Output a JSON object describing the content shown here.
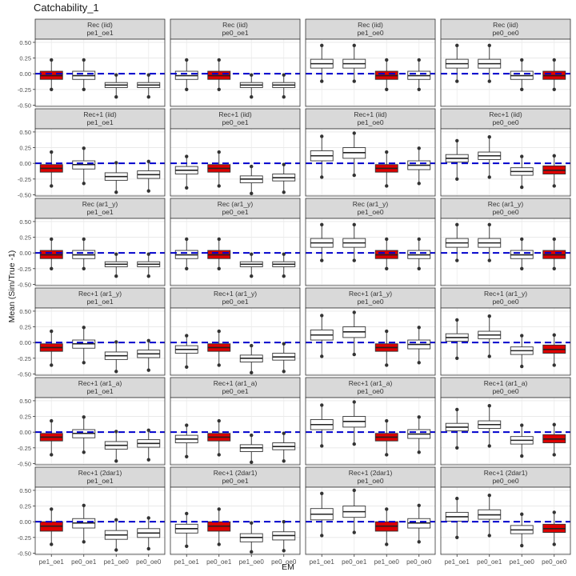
{
  "chart_data": {
    "type": "boxplot",
    "title": "Catchability_1",
    "xlabel": "EM",
    "ylabel": "Mean (Sim/True -1)",
    "ylim": [
      -0.52,
      0.55
    ],
    "yticks": [
      -0.5,
      -0.25,
      0,
      0.25,
      0.5
    ],
    "ytick_labels": [
      "-0.50",
      "-0.25",
      "0.00",
      "0.25",
      "0.50"
    ],
    "categories": [
      "pe1_oe1",
      "pe0_oe1",
      "pe1_oe0",
      "pe0_oe0"
    ],
    "reference_line": 0,
    "colors": {
      "highlight": "#dd0000",
      "plain": "#ffffff",
      "refline": "#0000cc",
      "strip": "#d9d9d9",
      "panel_border": "#333333"
    },
    "panels": [
      {
        "label": [
          "Rec (iid)",
          "pe1_oe1"
        ],
        "highlight": 0,
        "boxes": [
          [
            -0.25,
            -0.09,
            -0.03,
            0.04,
            0.22
          ],
          [
            -0.25,
            -0.09,
            -0.03,
            0.04,
            0.22
          ],
          [
            -0.37,
            -0.22,
            -0.18,
            -0.14,
            -0.02
          ],
          [
            -0.37,
            -0.22,
            -0.18,
            -0.14,
            -0.02
          ]
        ]
      },
      {
        "label": [
          "Rec (iid)",
          "pe0_oe1"
        ],
        "highlight": 1,
        "boxes": [
          [
            -0.25,
            -0.09,
            -0.03,
            0.04,
            0.22
          ],
          [
            -0.25,
            -0.09,
            -0.03,
            0.04,
            0.22
          ],
          [
            -0.37,
            -0.22,
            -0.18,
            -0.14,
            -0.02
          ],
          [
            -0.37,
            -0.22,
            -0.18,
            -0.14,
            -0.02
          ]
        ]
      },
      {
        "label": [
          "Rec (iid)",
          "pe1_oe0"
        ],
        "highlight": 2,
        "boxes": [
          [
            -0.12,
            0.09,
            0.16,
            0.23,
            0.45
          ],
          [
            -0.12,
            0.09,
            0.16,
            0.23,
            0.45
          ],
          [
            -0.25,
            -0.09,
            -0.03,
            0.04,
            0.22
          ],
          [
            -0.25,
            -0.09,
            -0.03,
            0.04,
            0.22
          ]
        ]
      },
      {
        "label": [
          "Rec (iid)",
          "pe0_oe0"
        ],
        "highlight": 3,
        "boxes": [
          [
            -0.12,
            0.09,
            0.16,
            0.23,
            0.45
          ],
          [
            -0.12,
            0.09,
            0.16,
            0.23,
            0.45
          ],
          [
            -0.25,
            -0.09,
            -0.03,
            0.04,
            0.22
          ],
          [
            -0.25,
            -0.09,
            -0.03,
            0.04,
            0.22
          ]
        ]
      },
      {
        "label": [
          "Rec+1 (iid)",
          "pe1_oe1"
        ],
        "highlight": 0,
        "boxes": [
          [
            -0.36,
            -0.14,
            -0.08,
            -0.02,
            0.18
          ],
          [
            -0.32,
            -0.09,
            -0.02,
            0.04,
            0.24
          ],
          [
            -0.46,
            -0.27,
            -0.21,
            -0.15,
            0.01
          ],
          [
            -0.44,
            -0.24,
            -0.18,
            -0.12,
            0.03
          ]
        ]
      },
      {
        "label": [
          "Rec+1 (iid)",
          "pe0_oe1"
        ],
        "highlight": 1,
        "boxes": [
          [
            -0.39,
            -0.17,
            -0.11,
            -0.05,
            0.11
          ],
          [
            -0.36,
            -0.14,
            -0.08,
            -0.02,
            0.18
          ],
          [
            -0.48,
            -0.31,
            -0.25,
            -0.2,
            -0.05
          ],
          [
            -0.46,
            -0.28,
            -0.23,
            -0.17,
            -0.02
          ]
        ]
      },
      {
        "label": [
          "Rec+1 (iid)",
          "pe1_oe0"
        ],
        "highlight": 2,
        "boxes": [
          [
            -0.22,
            0.04,
            0.12,
            0.2,
            0.43
          ],
          [
            -0.19,
            0.08,
            0.17,
            0.25,
            0.48
          ],
          [
            -0.36,
            -0.14,
            -0.08,
            -0.02,
            0.18
          ],
          [
            -0.32,
            -0.1,
            -0.03,
            0.04,
            0.24
          ]
        ]
      },
      {
        "label": [
          "Rec+1 (iid)",
          "pe0_oe0"
        ],
        "highlight": 3,
        "boxes": [
          [
            -0.25,
            0.02,
            0.08,
            0.14,
            0.36
          ],
          [
            -0.22,
            0.06,
            0.12,
            0.18,
            0.42
          ],
          [
            -0.38,
            -0.19,
            -0.13,
            -0.07,
            0.11
          ],
          [
            -0.36,
            -0.17,
            -0.11,
            -0.04,
            0.12
          ]
        ]
      },
      {
        "label": [
          "Rec (ar1_y)",
          "pe1_oe1"
        ],
        "highlight": 0,
        "boxes": [
          [
            -0.25,
            -0.09,
            -0.03,
            0.04,
            0.22
          ],
          [
            -0.25,
            -0.09,
            -0.03,
            0.04,
            0.22
          ],
          [
            -0.37,
            -0.22,
            -0.18,
            -0.14,
            -0.02
          ],
          [
            -0.37,
            -0.22,
            -0.18,
            -0.14,
            -0.02
          ]
        ]
      },
      {
        "label": [
          "Rec (ar1_y)",
          "pe0_oe1"
        ],
        "highlight": 1,
        "boxes": [
          [
            -0.25,
            -0.09,
            -0.03,
            0.04,
            0.22
          ],
          [
            -0.25,
            -0.09,
            -0.03,
            0.04,
            0.22
          ],
          [
            -0.37,
            -0.22,
            -0.18,
            -0.14,
            -0.02
          ],
          [
            -0.37,
            -0.22,
            -0.18,
            -0.14,
            -0.02
          ]
        ]
      },
      {
        "label": [
          "Rec (ar1_y)",
          "pe1_oe0"
        ],
        "highlight": 2,
        "boxes": [
          [
            -0.12,
            0.09,
            0.16,
            0.23,
            0.45
          ],
          [
            -0.12,
            0.09,
            0.16,
            0.23,
            0.45
          ],
          [
            -0.25,
            -0.09,
            -0.03,
            0.04,
            0.22
          ],
          [
            -0.25,
            -0.09,
            -0.03,
            0.04,
            0.22
          ]
        ]
      },
      {
        "label": [
          "Rec (ar1_y)",
          "pe0_oe0"
        ],
        "highlight": 3,
        "boxes": [
          [
            -0.12,
            0.09,
            0.16,
            0.23,
            0.45
          ],
          [
            -0.12,
            0.09,
            0.16,
            0.23,
            0.45
          ],
          [
            -0.25,
            -0.09,
            -0.03,
            0.04,
            0.22
          ],
          [
            -0.25,
            -0.09,
            -0.03,
            0.04,
            0.22
          ]
        ]
      },
      {
        "label": [
          "Rec+1 (ar1_y)",
          "pe1_oe1"
        ],
        "highlight": 0,
        "boxes": [
          [
            -0.36,
            -0.14,
            -0.08,
            -0.02,
            0.18
          ],
          [
            -0.32,
            -0.09,
            -0.02,
            0.04,
            0.24
          ],
          [
            -0.46,
            -0.27,
            -0.21,
            -0.15,
            0.01
          ],
          [
            -0.44,
            -0.24,
            -0.18,
            -0.12,
            0.03
          ]
        ]
      },
      {
        "label": [
          "Rec+1 (ar1_y)",
          "pe0_oe1"
        ],
        "highlight": 1,
        "boxes": [
          [
            -0.39,
            -0.17,
            -0.11,
            -0.05,
            0.11
          ],
          [
            -0.36,
            -0.14,
            -0.08,
            -0.02,
            0.18
          ],
          [
            -0.48,
            -0.31,
            -0.25,
            -0.2,
            -0.05
          ],
          [
            -0.46,
            -0.28,
            -0.23,
            -0.17,
            -0.02
          ]
        ]
      },
      {
        "label": [
          "Rec+1 (ar1_y)",
          "pe1_oe0"
        ],
        "highlight": 2,
        "boxes": [
          [
            -0.22,
            0.04,
            0.12,
            0.2,
            0.43
          ],
          [
            -0.19,
            0.08,
            0.17,
            0.25,
            0.48
          ],
          [
            -0.36,
            -0.14,
            -0.08,
            -0.02,
            0.18
          ],
          [
            -0.32,
            -0.1,
            -0.03,
            0.04,
            0.24
          ]
        ]
      },
      {
        "label": [
          "Rec+1 (ar1_y)",
          "pe0_oe0"
        ],
        "highlight": 3,
        "boxes": [
          [
            -0.25,
            0.02,
            0.08,
            0.14,
            0.36
          ],
          [
            -0.22,
            0.06,
            0.12,
            0.18,
            0.42
          ],
          [
            -0.38,
            -0.19,
            -0.13,
            -0.07,
            0.11
          ],
          [
            -0.36,
            -0.17,
            -0.11,
            -0.04,
            0.12
          ]
        ]
      },
      {
        "label": [
          "Rec+1 (ar1_a)",
          "pe1_oe1"
        ],
        "highlight": 0,
        "boxes": [
          [
            -0.36,
            -0.14,
            -0.08,
            -0.02,
            0.18
          ],
          [
            -0.32,
            -0.09,
            -0.02,
            0.04,
            0.24
          ],
          [
            -0.46,
            -0.27,
            -0.21,
            -0.15,
            0.01
          ],
          [
            -0.44,
            -0.24,
            -0.18,
            -0.12,
            0.03
          ]
        ]
      },
      {
        "label": [
          "Rec+1 (ar1_a)",
          "pe0_oe1"
        ],
        "highlight": 1,
        "boxes": [
          [
            -0.39,
            -0.17,
            -0.11,
            -0.05,
            0.11
          ],
          [
            -0.36,
            -0.14,
            -0.08,
            -0.02,
            0.18
          ],
          [
            -0.48,
            -0.31,
            -0.25,
            -0.2,
            -0.05
          ],
          [
            -0.46,
            -0.28,
            -0.23,
            -0.17,
            -0.02
          ]
        ]
      },
      {
        "label": [
          "Rec+1 (ar1_a)",
          "pe1_oe0"
        ],
        "highlight": 2,
        "boxes": [
          [
            -0.22,
            0.04,
            0.12,
            0.2,
            0.43
          ],
          [
            -0.19,
            0.08,
            0.17,
            0.25,
            0.48
          ],
          [
            -0.36,
            -0.14,
            -0.08,
            -0.02,
            0.18
          ],
          [
            -0.32,
            -0.1,
            -0.03,
            0.04,
            0.24
          ]
        ]
      },
      {
        "label": [
          "Rec+1 (ar1_a)",
          "pe0_oe0"
        ],
        "highlight": 3,
        "boxes": [
          [
            -0.25,
            0.02,
            0.08,
            0.14,
            0.36
          ],
          [
            -0.22,
            0.06,
            0.12,
            0.18,
            0.42
          ],
          [
            -0.38,
            -0.19,
            -0.13,
            -0.07,
            0.11
          ],
          [
            -0.36,
            -0.17,
            -0.11,
            -0.04,
            0.12
          ]
        ]
      },
      {
        "label": [
          "Rec+1 (2dar1)",
          "pe1_oe1"
        ],
        "highlight": 0,
        "boxes": [
          [
            -0.36,
            -0.15,
            -0.07,
            0.0,
            0.2
          ],
          [
            -0.32,
            -0.1,
            -0.02,
            0.05,
            0.26
          ],
          [
            -0.45,
            -0.28,
            -0.21,
            -0.14,
            0.03
          ],
          [
            -0.43,
            -0.25,
            -0.18,
            -0.11,
            0.06
          ]
        ]
      },
      {
        "label": [
          "Rec+1 (2dar1)",
          "pe0_oe1"
        ],
        "highlight": 1,
        "boxes": [
          [
            -0.39,
            -0.18,
            -0.11,
            -0.04,
            0.13
          ],
          [
            -0.36,
            -0.15,
            -0.07,
            0.0,
            0.2
          ],
          [
            -0.48,
            -0.32,
            -0.25,
            -0.19,
            -0.02
          ],
          [
            -0.46,
            -0.29,
            -0.22,
            -0.16,
            0.0
          ]
        ]
      },
      {
        "label": [
          "Rec+1 (2dar1)",
          "pe1_oe0"
        ],
        "highlight": 2,
        "boxes": [
          [
            -0.22,
            0.03,
            0.12,
            0.21,
            0.45
          ],
          [
            -0.17,
            0.07,
            0.16,
            0.25,
            0.5
          ],
          [
            -0.36,
            -0.15,
            -0.07,
            0.0,
            0.2
          ],
          [
            -0.32,
            -0.1,
            -0.02,
            0.05,
            0.26
          ]
        ]
      },
      {
        "label": [
          "Rec+1 (2dar1)",
          "pe0_oe0"
        ],
        "highlight": 3,
        "boxes": [
          [
            -0.25,
            0.01,
            0.08,
            0.15,
            0.37
          ],
          [
            -0.22,
            0.04,
            0.11,
            0.19,
            0.42
          ],
          [
            -0.38,
            -0.19,
            -0.13,
            -0.06,
            0.12
          ],
          [
            -0.36,
            -0.17,
            -0.11,
            -0.04,
            0.15
          ]
        ]
      }
    ]
  }
}
